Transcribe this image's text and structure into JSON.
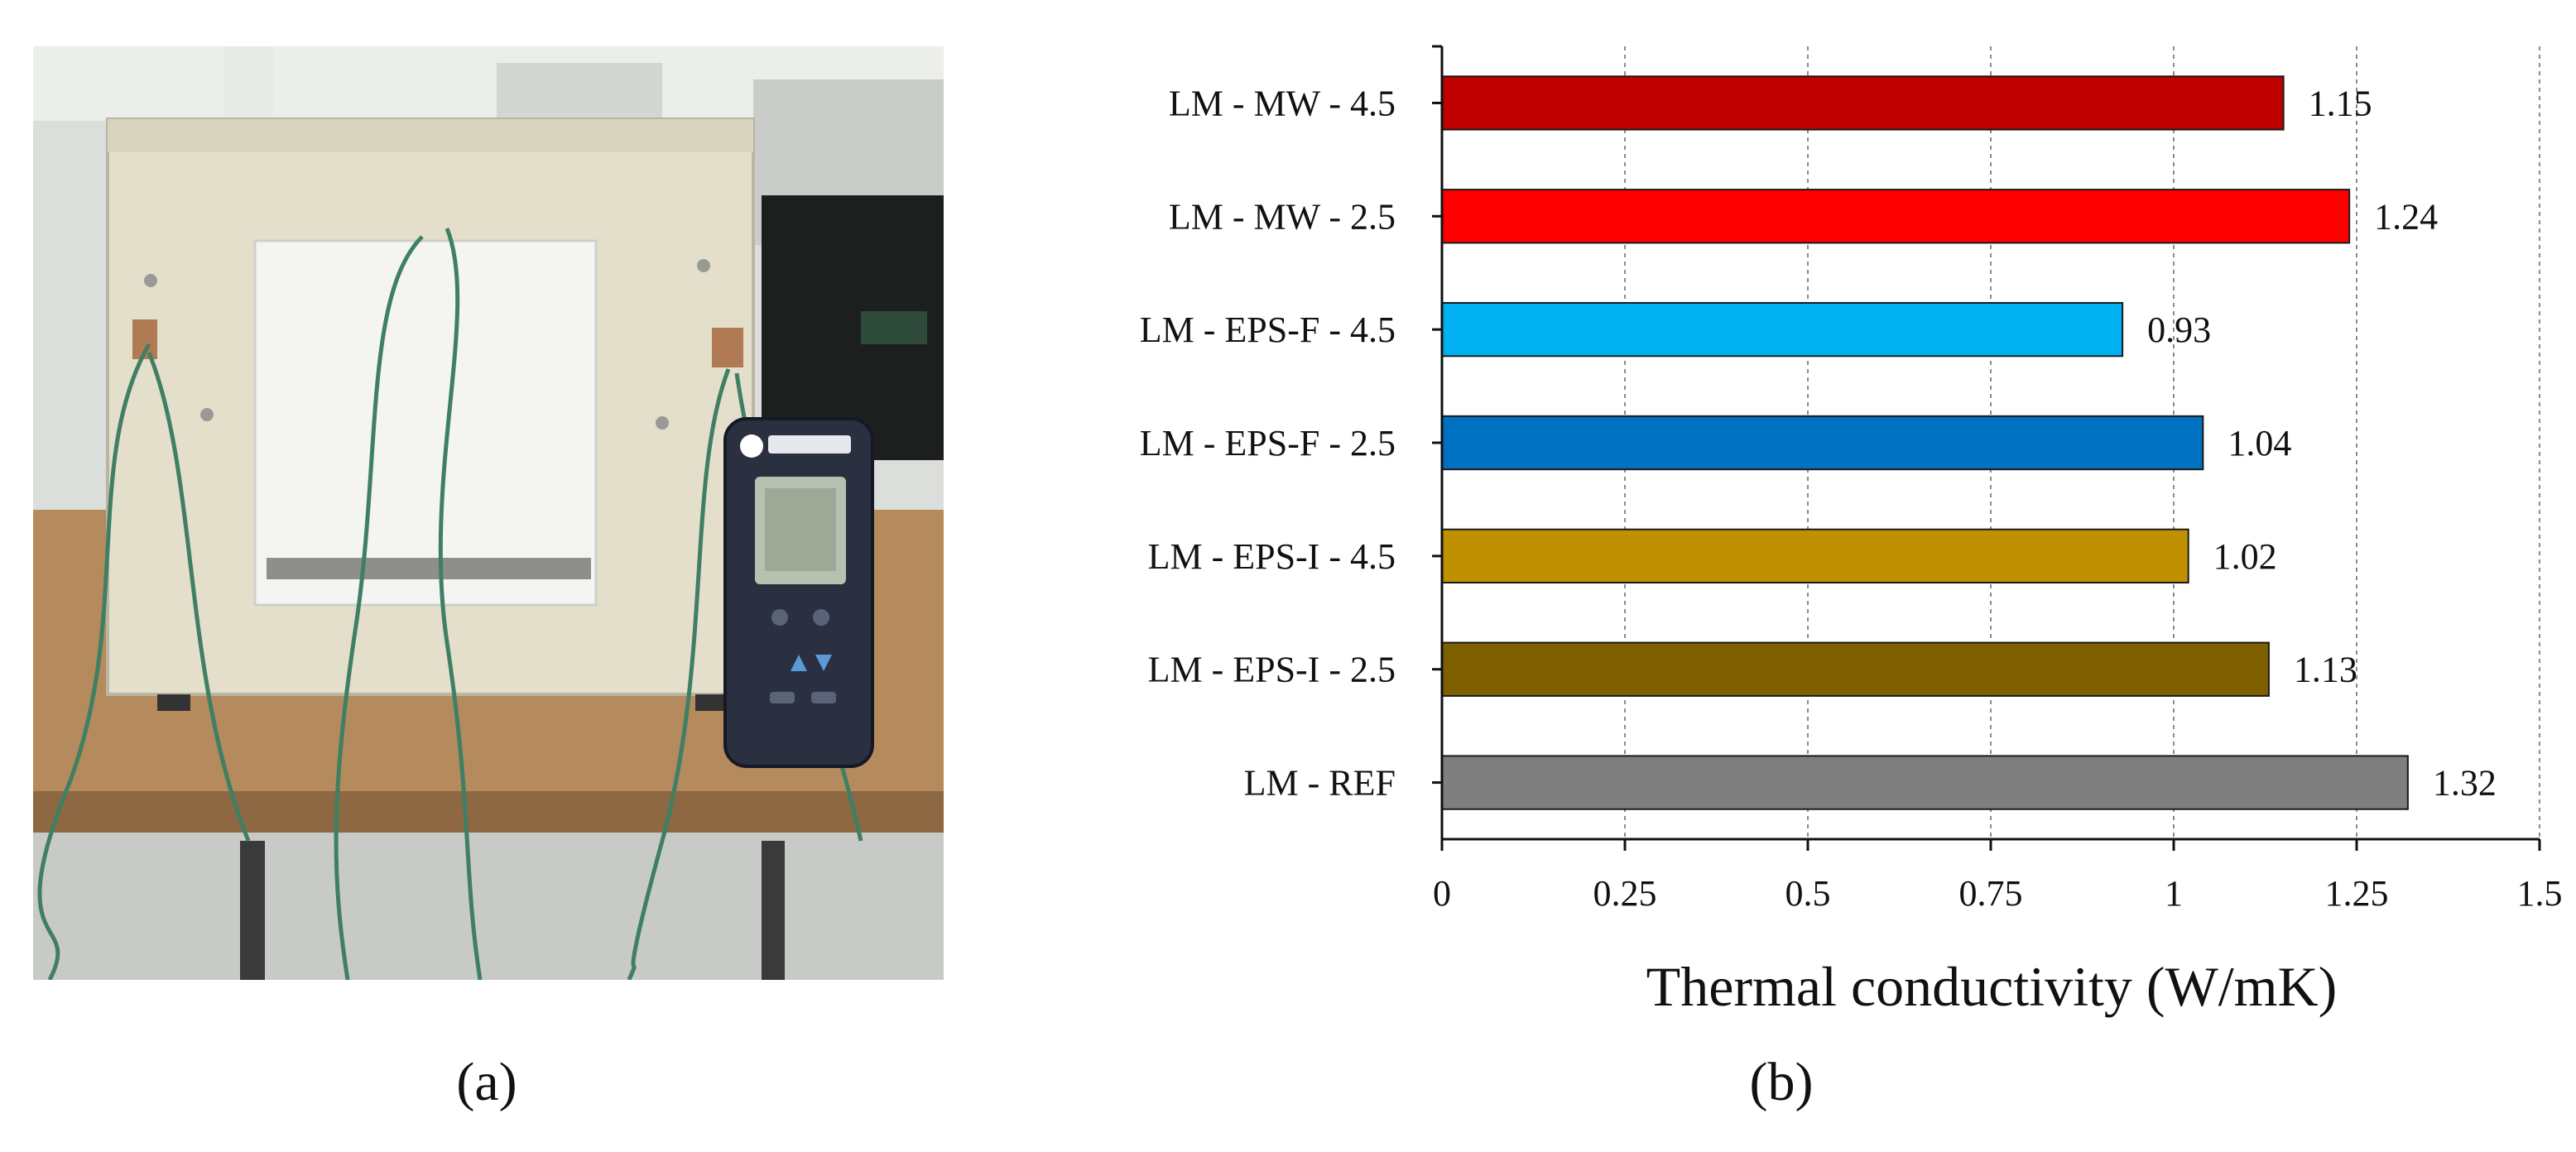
{
  "panels": {
    "a": {
      "label": "(a)"
    },
    "b": {
      "label": "(b)"
    }
  },
  "chart_data": {
    "type": "bar",
    "orientation": "horizontal",
    "categories": [
      "LM - MW - 4.5",
      "LM - MW - 2.5",
      "LM - EPS-F - 4.5",
      "LM - EPS-F - 2.5",
      "LM - EPS-I - 4.5",
      "LM - EPS-I - 2.5",
      "LM - REF"
    ],
    "values": [
      1.15,
      1.24,
      0.93,
      1.04,
      1.02,
      1.13,
      1.32
    ],
    "value_labels": [
      "1.15",
      "1.24",
      "0.93",
      "1.04",
      "1.02",
      "1.13",
      "1.32"
    ],
    "colors": [
      "#c00000",
      "#ff0000",
      "#00b0f0",
      "#0070c0",
      "#bf9000",
      "#7f6000",
      "#7f7f7f"
    ],
    "xlabel": "Thermal conductivity (W/mK)",
    "ylabel": "",
    "xlim": [
      0,
      1.5
    ],
    "xticks": [
      0,
      0.25,
      0.5,
      0.75,
      1,
      1.25,
      1.5
    ],
    "xtick_labels": [
      "0",
      "0.25",
      "0.5",
      "0.75",
      "1",
      "1.25",
      "1.5"
    ],
    "grid": "vertical dashed",
    "legend": "none"
  }
}
